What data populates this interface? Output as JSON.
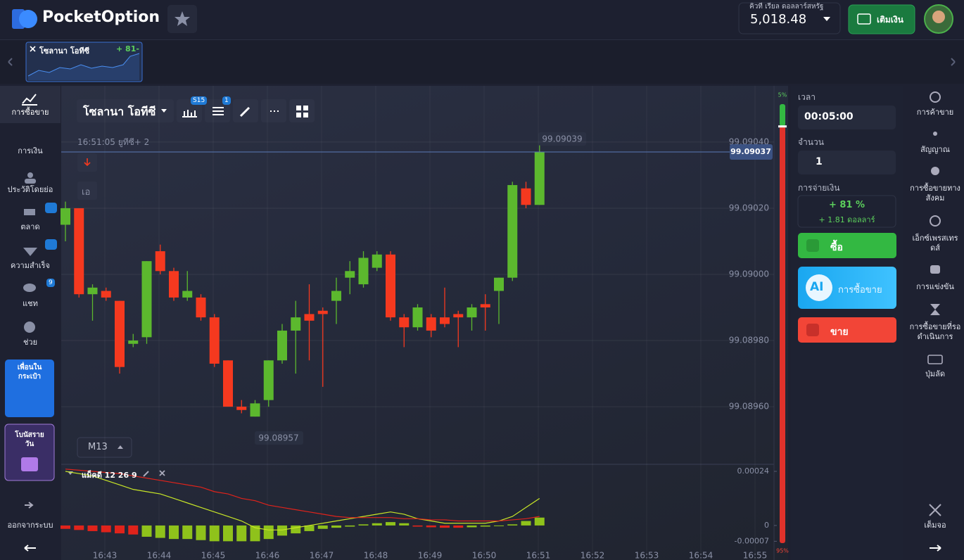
{
  "header": {
    "logo": "PocketOption",
    "account_label": "คิวที เรียล  ดอลลาร์สหรัฐ",
    "balance": "5,018.48",
    "deposit": "เติมเงิน"
  },
  "asset_tab": {
    "name": "โซลานา โอทีซี",
    "payout": "+ 81-"
  },
  "left_nav": {
    "items": [
      "การซื้อขาย",
      "การเงิน",
      "ประวัติโดยย่อ",
      "ตลาด",
      "ความสำเร็จ",
      "แชท",
      "ช่วย"
    ],
    "chat_badge": "9",
    "promo_friends": [
      "เพื่อนใน",
      "กระเป๋า"
    ],
    "promo_bonus": [
      "โบนัสราย",
      "วัน"
    ],
    "logout": "ออกจากระบบ"
  },
  "toolbar": {
    "asset": "โซลานา โอทีซี",
    "period_badge": "S15",
    "indicator_badge": "1",
    "info": "16:51:05 ยูทีซี+ 2",
    "timeframe": "M13",
    "side_label": "เอ"
  },
  "chart_data": {
    "type": "candlestick",
    "open": [
      99.09015,
      99.0902,
      99.08994,
      99.08995,
      99.08992,
      99.08979,
      99.08981,
      99.09007,
      99.09001,
      99.08993,
      99.08993,
      99.08987,
      99.08974,
      99.0896,
      99.08957,
      99.08962,
      99.08974,
      99.08983,
      99.08988,
      99.08989,
      99.08992,
      99.08999,
      99.08997,
      99.09002,
      99.09006,
      99.08987,
      99.08984,
      99.08987,
      99.08987,
      99.08988,
      99.08987,
      99.08991,
      99.08995,
      99.08999,
      99.09026,
      99.09021
    ],
    "close": [
      99.0902,
      99.08994,
      99.08996,
      99.08993,
      99.08972,
      99.0898,
      99.09004,
      99.09001,
      99.08993,
      99.08995,
      99.08987,
      99.08973,
      99.0896,
      99.08959,
      99.08961,
      99.08974,
      99.08983,
      99.08987,
      99.08986,
      99.08988,
      99.08995,
      99.09001,
      99.09005,
      99.09006,
      99.08987,
      99.08984,
      99.0899,
      99.08983,
      99.08985,
      99.08987,
      99.0899,
      99.0899,
      99.08999,
      99.09027,
      99.09021,
      99.09037
    ],
    "high": [
      99.09022,
      99.0902,
      99.08997,
      99.08996,
      99.08992,
      99.08982,
      99.09004,
      99.09009,
      99.09002,
      99.09001,
      99.08994,
      99.08988,
      99.08974,
      99.08962,
      99.08962,
      99.08974,
      99.08985,
      99.08992,
      99.08997,
      99.0899,
      99.08999,
      99.09004,
      99.09007,
      99.09007,
      99.09007,
      99.08988,
      99.08991,
      99.08988,
      99.08996,
      99.08989,
      99.08991,
      99.08994,
      99.08999,
      99.09028,
      99.09028,
      99.09039
    ],
    "low": [
      99.0901,
      99.08993,
      99.08986,
      99.08992,
      99.0897,
      99.08978,
      99.08979,
      99.09,
      99.08992,
      99.08992,
      99.08986,
      99.08972,
      99.0896,
      99.08958,
      99.08957,
      99.0896,
      99.08973,
      99.0897,
      99.08974,
      99.08966,
      99.08985,
      99.08994,
      99.08996,
      99.09001,
      99.08986,
      99.08978,
      99.08983,
      99.08981,
      99.08984,
      99.08978,
      99.08983,
      99.08983,
      99.08985,
      99.08998,
      99.0902,
      99.09021
    ],
    "up_color": "#5cb82e",
    "down_color": "#f5391f",
    "ylim": [
      99.08943,
      99.09057
    ],
    "yticks": [
      {
        "value": 99.0896,
        "label": "99.08960"
      },
      {
        "value": 99.0898,
        "label": "99.08980"
      },
      {
        "value": 99.09,
        "label": "99.09000"
      },
      {
        "value": 99.0902,
        "label": "99.09020"
      },
      {
        "value": 99.0904,
        "label": "99.09040"
      }
    ],
    "xticks": [
      "16:43",
      "16:44",
      "16:45",
      "16:46",
      "16:47",
      "16:48",
      "16:49",
      "16:50",
      "16:51",
      "16:52",
      "16:53",
      "16:54",
      "16:55"
    ],
    "high_label": "99.09039",
    "low_label": "99.08957",
    "current_price": {
      "value": 99.09037,
      "label": "99.09037"
    },
    "grid": true
  },
  "indicator": {
    "title": "แม็คดี  12 26 9",
    "histogram": [
      -1.5e-05,
      -2e-05,
      -2.5e-05,
      -3e-05,
      -3.5e-05,
      -4e-05,
      -5e-05,
      -5.5e-05,
      -6e-05,
      -6e-05,
      -6.5e-05,
      -7e-05,
      -7e-05,
      -7e-05,
      -7e-05,
      -6e-05,
      -4.5e-05,
      -3.5e-05,
      -2.5e-05,
      -1.5e-05,
      -1e-05,
      -5e-06,
      5e-06,
      1e-05,
      1.5e-05,
      1e-05,
      -5e-06,
      -8e-06,
      -1e-05,
      -1e-05,
      -8e-06,
      -5e-06,
      0,
      5e-06,
      2e-05,
      3.5e-05
    ],
    "histogram_colors": [
      "#e0231b",
      "#e0231b",
      "#e0231b",
      "#e0231b",
      "#e0231b",
      "#e0231b",
      "#8fc21b",
      "#8fc21b",
      "#8fc21b",
      "#8fc21b",
      "#8fc21b",
      "#8fc21b",
      "#8fc21b",
      "#8fc21b",
      "#8fc21b",
      "#8fc21b",
      "#8fc21b",
      "#8fc21b",
      "#8fc21b",
      "#8fc21b",
      "#8fc21b",
      "#8fc21b",
      "#8fc21b",
      "#8fc21b",
      "#8fc21b",
      "#8fc21b",
      "#e0231b",
      "#e0231b",
      "#e0231b",
      "#e0231b",
      "#8fc21b",
      "#8fc21b",
      "#8fc21b",
      "#8fc21b",
      "#8fc21b",
      "#8fc21b"
    ],
    "macd": [
      0.00024,
      0.00023,
      0.00022,
      0.0002,
      0.00018,
      0.00016,
      0.00015,
      0.00014,
      0.00012,
      0.0001,
      8e-05,
      6e-05,
      4e-05,
      2e-05,
      -1e-05,
      -2e-05,
      -2e-05,
      -1e-05,
      0,
      1e-05,
      2e-05,
      3e-05,
      4e-05,
      5e-05,
      6e-05,
      5e-05,
      3e-05,
      2e-05,
      1e-05,
      1e-05,
      1e-05,
      1e-05,
      2e-05,
      4e-05,
      8e-05,
      0.00012
    ],
    "signal": [
      0.00025,
      0.000245,
      0.00024,
      0.000235,
      0.00023,
      0.00022,
      0.00021,
      0.0002,
      0.00019,
      0.00018,
      0.00017,
      0.00015,
      0.00014,
      0.00012,
      0.00011,
      9e-05,
      8e-05,
      7e-05,
      6e-05,
      5e-05,
      4e-05,
      3.5e-05,
      3.5e-05,
      3.5e-05,
      3.5e-05,
      3e-05,
      3e-05,
      2.5e-05,
      2.5e-05,
      2e-05,
      2e-05,
      2e-05,
      2e-05,
      2.5e-05,
      3e-05,
      4e-05
    ],
    "macd_color": "#c8e627",
    "signal_color": "#e0231b",
    "ylim": [
      -0.00015,
      0.000265
    ],
    "yticks": [
      -7e-05,
      0,
      0.00024
    ]
  },
  "gauge": {
    "buy": {
      "value": 5,
      "label": "5%"
    },
    "sell": {
      "value": 95,
      "label": "95%"
    }
  },
  "trade_panel": {
    "time_label": "เวลา",
    "time": "00:05:00",
    "amount_label": "จำนวน",
    "amount": "1",
    "payout_label": "การจ่ายเงิน",
    "payout_percent": "+ 81 %",
    "payout_amount": "+ 1.81 ดอลลาร์",
    "buy": "ซื้อ",
    "ai_badge": "AI",
    "ai_trade": "การซื้อขาย",
    "sell": "ขาย"
  },
  "right_nav": {
    "items": [
      [
        "การค้าขาย"
      ],
      [
        "สัญญาณ"
      ],
      [
        "การซื้อขายทาง",
        "สังคม"
      ],
      [
        "เอ็กซ์เพรสเทร",
        "ดส์"
      ],
      [
        "การแข่งขัน"
      ],
      [
        "การซื้อขายที่รอ",
        "ดำเนินการ"
      ],
      [
        "ปุ่มลัด"
      ]
    ],
    "fullscreen": "เต็มจอ"
  }
}
